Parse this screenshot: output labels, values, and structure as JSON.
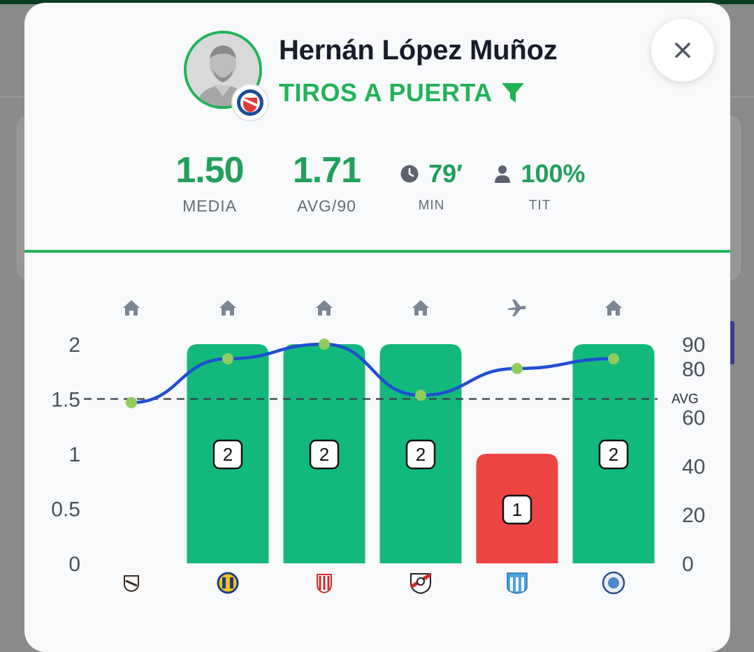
{
  "player": {
    "name": "Hernán López Muñoz",
    "stat_title": "TIROS A PUERTA"
  },
  "kpis": {
    "media_value": "1.50",
    "media_label": "MEDIA",
    "avg90_value": "1.71",
    "avg90_label": "AVG/90",
    "min_value": "79′",
    "min_label": "MIN",
    "tit_value": "100%",
    "tit_label": "TIT"
  },
  "colors": {
    "accent": "#22b357",
    "bar_good": "#13b97c",
    "bar_bad": "#ef4444",
    "line": "#1f4fd1",
    "point": "#8fce5c"
  },
  "chart_data": {
    "type": "bar",
    "categories": [
      "Platense",
      "Rosario Central",
      "Estudiantes BA",
      "River Plate",
      "Racing Club",
      "Belgrano"
    ],
    "venue": [
      "home",
      "home",
      "home",
      "home",
      "away",
      "home"
    ],
    "values": [
      0,
      2,
      2,
      2,
      1,
      2
    ],
    "bar_status": [
      "none",
      "good",
      "good",
      "good",
      "bad",
      "good"
    ],
    "minutes": [
      66,
      84,
      90,
      69,
      80,
      84
    ],
    "average": 1.5,
    "average_label": "AVG",
    "ylim": [
      0,
      2
    ],
    "y_ticks": [
      "0",
      "0.5",
      "1",
      "1.5",
      "2"
    ],
    "y2lim": [
      0,
      90
    ],
    "y2_ticks": [
      "0",
      "20",
      "40",
      "60",
      "80",
      "90"
    ]
  }
}
